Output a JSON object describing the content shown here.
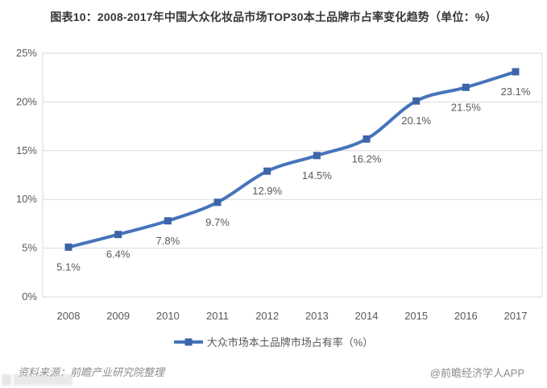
{
  "title": "图表10：2008-2017年中国大众化妆品市场TOP30本土品牌市占率变化趋势（单位：%）",
  "chart_data": {
    "type": "line",
    "title": "图表10：2008-2017年中国大众化妆品市场TOP30本土品牌市占率变化趋势（单位：%）",
    "categories": [
      "2008",
      "2009",
      "2010",
      "2011",
      "2012",
      "2013",
      "2014",
      "2015",
      "2016",
      "2017"
    ],
    "series": [
      {
        "name": "大众市场本土品牌市场占有率（%）",
        "values": [
          5.1,
          6.4,
          7.8,
          9.7,
          12.9,
          14.5,
          16.2,
          20.1,
          21.5,
          23.1
        ]
      }
    ],
    "data_labels": [
      "5.1%",
      "6.4%",
      "7.8%",
      "9.7%",
      "12.9%",
      "14.5%",
      "16.2%",
      "20.1%",
      "21.5%",
      "23.1%"
    ],
    "xlabel": "",
    "ylabel": "",
    "ylim": [
      0,
      25
    ],
    "yticks": [
      0,
      5,
      10,
      15,
      20,
      25
    ],
    "ytick_labels": [
      "0%",
      "5%",
      "10%",
      "15%",
      "20%",
      "25%"
    ],
    "grid": "horizontal",
    "smooth": true,
    "legend_position": "bottom",
    "line_color": "#4674BA",
    "marker_color": "#3D64A8",
    "grid_color": "#dcdcdc",
    "border_color": "#d9d9d9",
    "axis_text_color": "#595959",
    "label_text_color": "#595959"
  },
  "legend": {
    "label": "大众市场本土品牌市场占有率（%）"
  },
  "footer": {
    "source": "资料来源：前瞻产业研究院整理",
    "credit": "@前瞻经济学人APP"
  }
}
